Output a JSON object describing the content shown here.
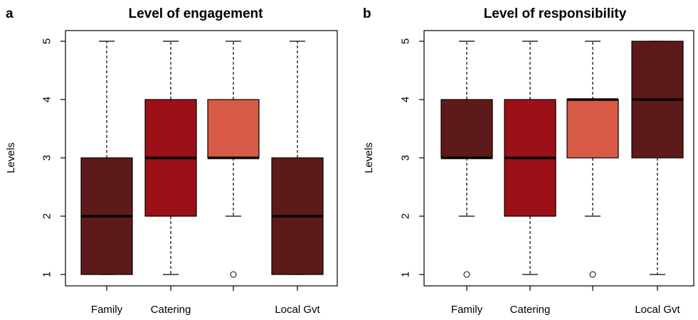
{
  "chart_data": [
    {
      "panel": "a",
      "type": "box",
      "title": "Level of engagement",
      "ylabel": "Levels",
      "ylim": [
        1,
        5
      ],
      "yticks": [
        1,
        2,
        3,
        4,
        5
      ],
      "categories": [
        "Family",
        "Catering",
        "",
        "Local Gvt"
      ],
      "boxes": [
        {
          "whisker_low": 1,
          "q1": 1,
          "median": 2,
          "q3": 3,
          "whisker_high": 5,
          "outliers": [],
          "color": "#5e1a1a"
        },
        {
          "whisker_low": 1,
          "q1": 2,
          "median": 3,
          "q3": 4,
          "whisker_high": 5,
          "outliers": [],
          "color": "#9b1117"
        },
        {
          "whisker_low": 2,
          "q1": 3,
          "median": 3,
          "q3": 4,
          "whisker_high": 5,
          "outliers": [
            1
          ],
          "color": "#d65a45"
        },
        {
          "whisker_low": 1,
          "q1": 1,
          "median": 2,
          "q3": 3,
          "whisker_high": 5,
          "outliers": [],
          "color": "#5e1a1a"
        }
      ],
      "grid": false,
      "legend": "none"
    },
    {
      "panel": "b",
      "type": "box",
      "title": "Level of responsibility",
      "ylabel": "Levels",
      "ylim": [
        1,
        5
      ],
      "yticks": [
        1,
        2,
        3,
        4,
        5
      ],
      "categories": [
        "Family",
        "Catering",
        "",
        "Local Gvt"
      ],
      "boxes": [
        {
          "whisker_low": 2,
          "q1": 3,
          "median": 3,
          "q3": 4,
          "whisker_high": 5,
          "outliers": [
            1
          ],
          "color": "#5e1a1a"
        },
        {
          "whisker_low": 1,
          "q1": 2,
          "median": 3,
          "q3": 4,
          "whisker_high": 5,
          "outliers": [],
          "color": "#9b1117"
        },
        {
          "whisker_low": 2,
          "q1": 3,
          "median": 4,
          "q3": 4,
          "whisker_high": 5,
          "outliers": [
            1
          ],
          "color": "#d65a45"
        },
        {
          "whisker_low": 1,
          "q1": 3,
          "median": 4,
          "q3": 5,
          "whisker_high": 5,
          "outliers": [],
          "color": "#5e1a1a"
        }
      ],
      "grid": false,
      "legend": "none"
    }
  ]
}
